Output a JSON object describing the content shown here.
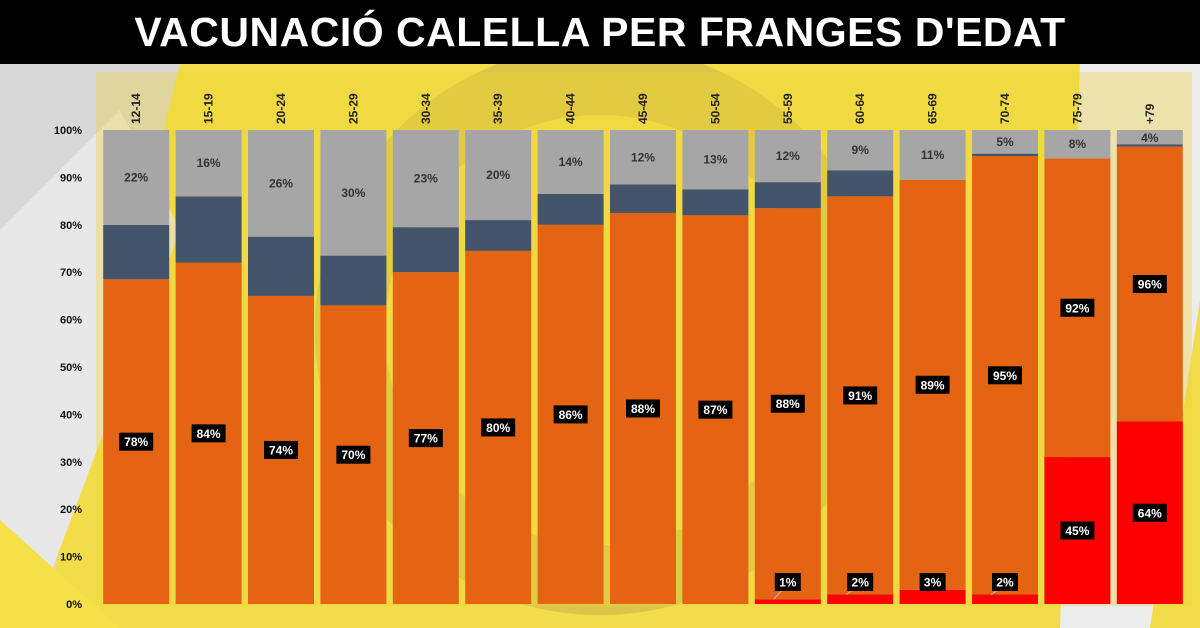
{
  "header": {
    "title": "VACUNACIÓ CALELLA PER FRANGES D'EDAT"
  },
  "colors": {
    "background": "#f2dc4a",
    "gray": "#a6a6a6",
    "navy": "#44546a",
    "orange": "#e46414",
    "red": "#ff0000",
    "label_box": "#000000"
  },
  "chart_data": {
    "type": "bar",
    "stacked": true,
    "categories": [
      "12-14",
      "15-19",
      "20-24",
      "25-29",
      "30-34",
      "35-39",
      "40-44",
      "45-49",
      "50-54",
      "55-59",
      "60-64",
      "65-69",
      "70-74",
      "75-79",
      "+79"
    ],
    "series": [
      {
        "values": [
          0,
          0,
          0,
          0,
          0,
          0,
          0,
          0,
          0,
          1,
          2,
          3,
          2,
          31,
          38.5
        ]
      },
      {
        "values": [
          68.5,
          72,
          65,
          63,
          70,
          74.5,
          80,
          82.5,
          82,
          82.5,
          84,
          86.5,
          92.5,
          63,
          58
        ]
      },
      {
        "values": [
          11.5,
          14,
          12.5,
          10.5,
          9.5,
          6.5,
          6.5,
          6,
          5.5,
          5.5,
          5.5,
          0,
          0.5,
          0,
          0.5
        ]
      },
      {
        "values": [
          20,
          14,
          22.5,
          26.5,
          20.5,
          19,
          13.5,
          11.5,
          12.5,
          11,
          8.5,
          10.5,
          5,
          6,
          3
        ]
      }
    ],
    "orange_labels": [
      "78%",
      "84%",
      "74%",
      "70%",
      "77%",
      "80%",
      "86%",
      "88%",
      "87%",
      "88%",
      "91%",
      "89%",
      "95%",
      "92%",
      "96%"
    ],
    "gray_labels": [
      "22%",
      "16%",
      "26%",
      "30%",
      "23%",
      "20%",
      "14%",
      "12%",
      "13%",
      "12%",
      "9%",
      "11%",
      "5%",
      "8%",
      "4%"
    ],
    "red_labels": [
      "",
      "",
      "",
      "",
      "",
      "",
      "",
      "",
      "",
      "1%",
      "2%",
      "3%",
      "2%",
      "45%",
      "64%"
    ],
    "y_ticks": [
      "0%",
      "10%",
      "20%",
      "30%",
      "40%",
      "50%",
      "60%",
      "70%",
      "80%",
      "90%",
      "100%"
    ],
    "ylim": [
      0,
      100
    ],
    "grid": false,
    "legend": "none"
  }
}
